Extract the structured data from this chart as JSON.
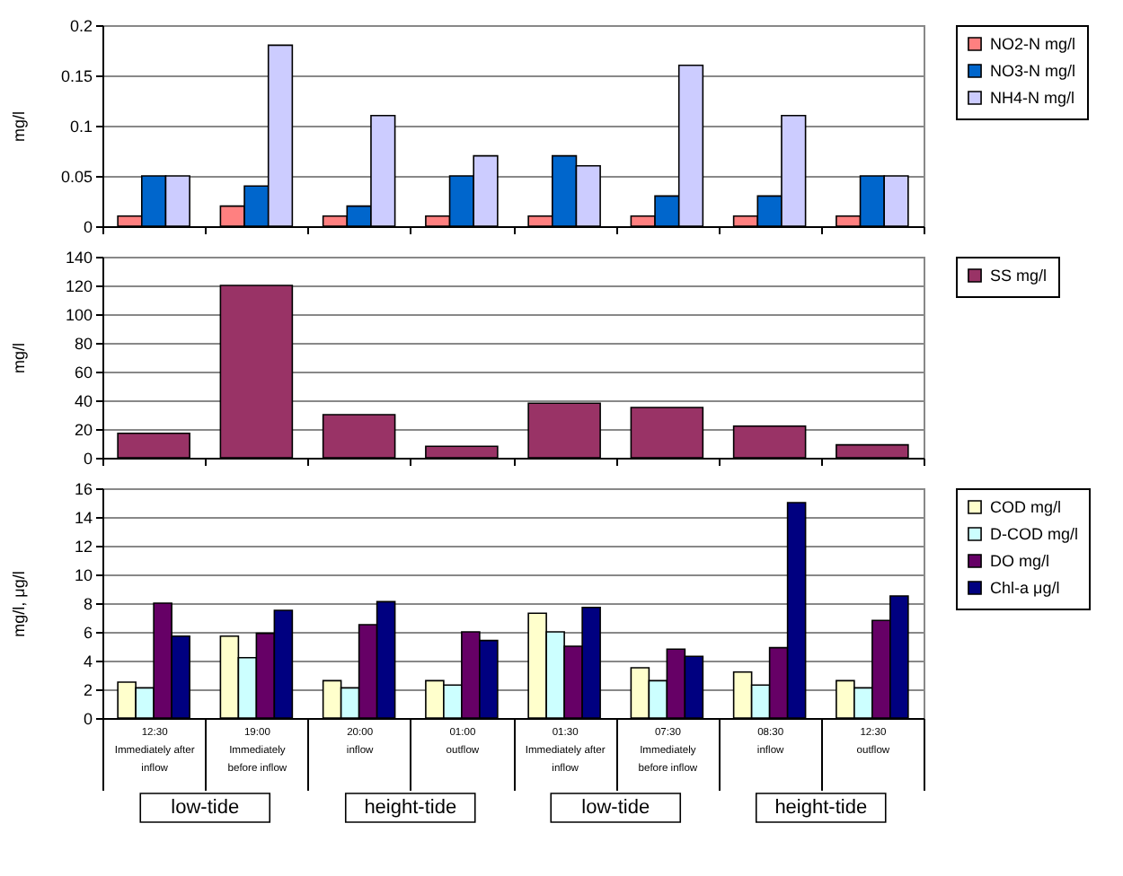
{
  "chart_data": [
    {
      "type": "bar",
      "ylabel": "mg/l",
      "categories": [
        null,
        null,
        null,
        null,
        null,
        null,
        null,
        null
      ],
      "series": [
        {
          "name": "NO2-N mg/l",
          "color": "#ff8080",
          "values": [
            0.01,
            0.02,
            0.01,
            0.01,
            0.01,
            0.01,
            0.01,
            0.01
          ]
        },
        {
          "name": "NO3-N mg/l",
          "color": "#0066cc",
          "values": [
            0.05,
            0.04,
            0.02,
            0.05,
            0.07,
            0.03,
            0.03,
            0.05
          ]
        },
        {
          "name": "NH4-N mg/l",
          "color": "#ccccff",
          "values": [
            0.05,
            0.18,
            0.11,
            0.07,
            0.06,
            0.16,
            0.11,
            0.05
          ]
        }
      ],
      "ylim": [
        0,
        0.2
      ],
      "yticks": [
        0,
        0.05,
        0.1,
        0.15,
        0.2
      ],
      "grid": "y",
      "legend": "right",
      "tick_labels": "y"
    },
    {
      "type": "bar",
      "ylabel": "mg/l",
      "categories": [
        null,
        null,
        null,
        null,
        null,
        null,
        null,
        null
      ],
      "series": [
        {
          "name": "SS mg/l",
          "color": "#993366",
          "values": [
            17,
            120,
            30,
            8,
            38,
            35,
            22,
            9
          ]
        }
      ],
      "ylim": [
        0,
        140
      ],
      "yticks": [
        0,
        20,
        40,
        60,
        80,
        100,
        120,
        140
      ],
      "grid": "y",
      "legend": "right",
      "tick_labels": "y"
    },
    {
      "type": "bar",
      "ylabel": "mg/l, μg/l",
      "categories": [
        "12:30\nImmediately after\ninflow",
        "19:00\nImmediately\nbefore inflow",
        "20:00\ninflow",
        "01:00\noutflow",
        "01:30\nImmediately after\ninflow",
        "07:30\nImmediately\nbefore inflow",
        "08:30\ninflow",
        "12:30\noutflow"
      ],
      "series": [
        {
          "name": "COD mg/l",
          "color": "#ffffcc",
          "values": [
            2.5,
            5.7,
            2.6,
            2.6,
            7.3,
            3.5,
            3.2,
            2.6
          ]
        },
        {
          "name": "D-COD mg/l",
          "color": "#ccffff",
          "values": [
            2.1,
            4.2,
            2.1,
            2.3,
            6.0,
            2.6,
            2.3,
            2.1
          ]
        },
        {
          "name": "DO mg/l",
          "color": "#660066",
          "values": [
            8.0,
            5.9,
            6.5,
            6.0,
            5.0,
            4.8,
            4.9,
            6.8
          ]
        },
        {
          "name": "Chl-a μg/l",
          "color": "#000080",
          "values": [
            5.7,
            7.5,
            8.1,
            5.4,
            7.7,
            4.3,
            15.0,
            8.5
          ]
        }
      ],
      "ylim": [
        0,
        16
      ],
      "yticks": [
        0,
        2,
        4,
        6,
        8,
        10,
        12,
        14,
        16
      ],
      "grid": "y",
      "legend": "right",
      "annotations": [
        "low-tide",
        "height-tide",
        "low-tide",
        "height-tide"
      ]
    }
  ]
}
